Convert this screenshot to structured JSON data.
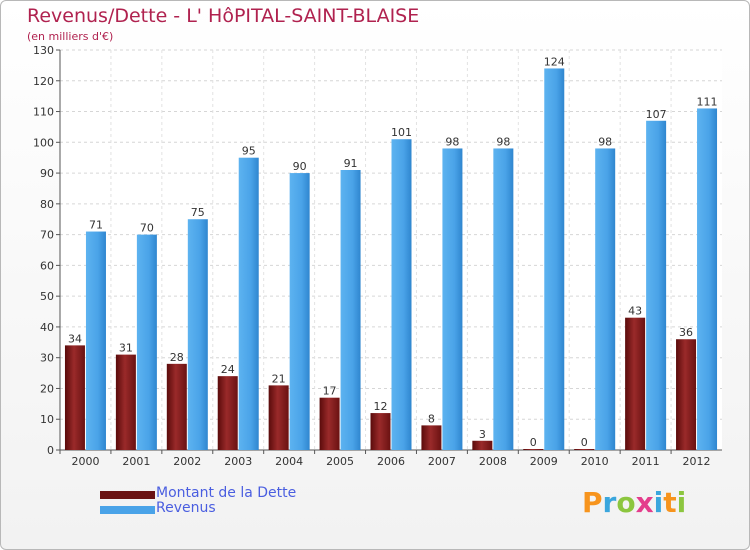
{
  "title": "Revenus/Dette - L' HôPITAL-SAINT-BLAISE",
  "subtitle": "(en milliers d'€)",
  "logo": {
    "letters": [
      "P",
      "r",
      "o",
      "x",
      "i",
      "t",
      "i"
    ],
    "colors": [
      "#f7941d",
      "#3aa6dd",
      "#8cc63f",
      "#e43d8c",
      "#3aa6dd",
      "#f7941d",
      "#8cc63f"
    ]
  },
  "chart_data": {
    "type": "bar",
    "categories": [
      "2000",
      "2001",
      "2002",
      "2003",
      "2004",
      "2005",
      "2006",
      "2007",
      "2008",
      "2009",
      "2010",
      "2011",
      "2012"
    ],
    "series": [
      {
        "name": "Montant de la Dette",
        "color": "#7a1a1a",
        "values": [
          34,
          31,
          28,
          24,
          21,
          17,
          12,
          8,
          3,
          0,
          0,
          43,
          36
        ]
      },
      {
        "name": "Revenus",
        "color": "#4aa3e8",
        "values": [
          71,
          70,
          75,
          95,
          90,
          91,
          101,
          98,
          98,
          124,
          98,
          107,
          111
        ]
      }
    ],
    "ylim": [
      0,
      130
    ],
    "yticks": [
      0,
      10,
      20,
      30,
      40,
      50,
      60,
      70,
      80,
      90,
      100,
      110,
      120,
      130
    ],
    "grid": true,
    "legend": "bottom-left"
  }
}
